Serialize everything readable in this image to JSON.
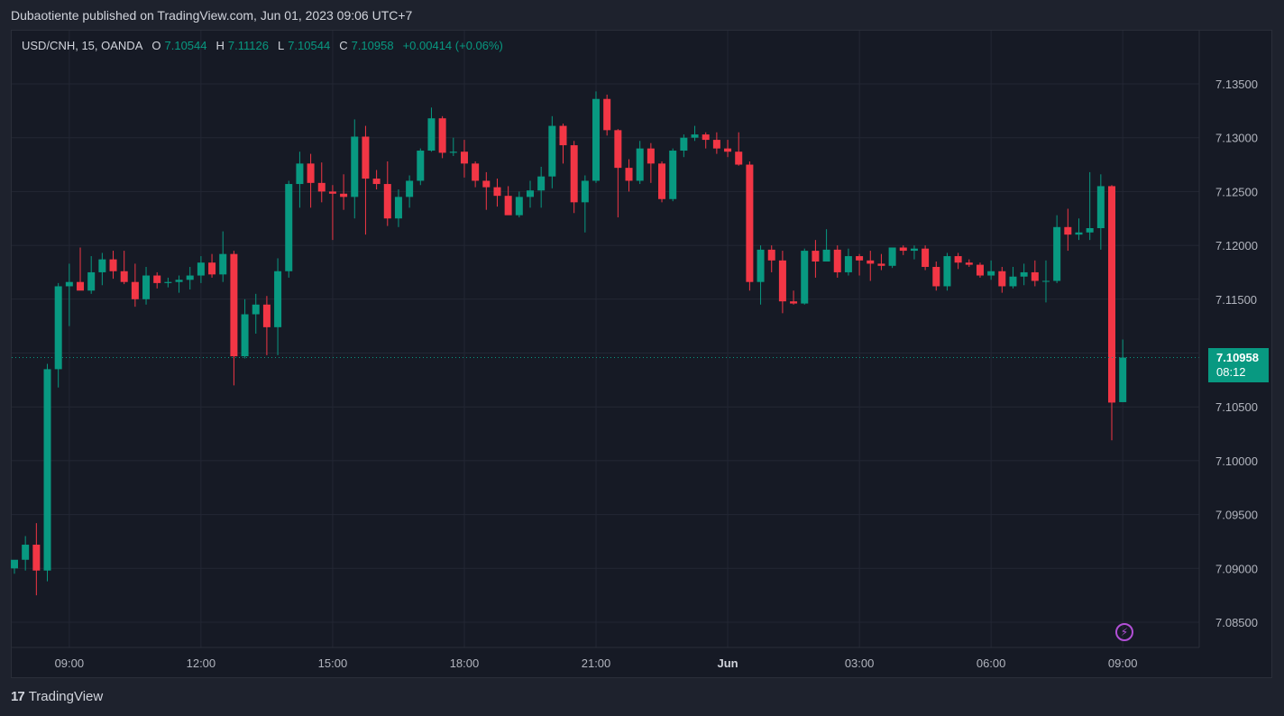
{
  "header": {
    "published": "Dubaotiente published on TradingView.com, Jun 01, 2023 09:06 UTC+7"
  },
  "legend": {
    "symbol": "USD/CNH, 15, OANDA",
    "o_label": "O",
    "o_value": "7.10544",
    "h_label": "H",
    "h_value": "7.11126",
    "l_label": "L",
    "l_value": "7.10544",
    "c_label": "C",
    "c_value": "7.10958",
    "change": "+0.00414 (+0.06%)"
  },
  "price_tag": {
    "price": "7.10958",
    "countdown": "08:12"
  },
  "footer": {
    "logo_mark": "17",
    "brand": "TradingView"
  },
  "colors": {
    "up": "#089981",
    "down": "#f23645",
    "background": "#161a25",
    "grid": "#232734"
  },
  "icons": {
    "replay": "lightning-bolt-icon"
  },
  "chart_data": {
    "type": "candlestick",
    "symbol": "USD/CNH",
    "interval": "15",
    "ylim": [
      7.0825,
      7.1385
    ],
    "y_ticks": [
      "7.13500",
      "7.13000",
      "7.12500",
      "7.12000",
      "7.11500",
      "7.11000",
      "7.10500",
      "7.10000",
      "7.09500",
      "7.09000",
      "7.08500"
    ],
    "x_ticks": [
      {
        "label": "09:00",
        "index": 5
      },
      {
        "label": "12:00",
        "index": 17
      },
      {
        "label": "15:00",
        "index": 29
      },
      {
        "label": "18:00",
        "index": 41
      },
      {
        "label": "21:00",
        "index": 53
      },
      {
        "label": "Jun",
        "index": 65,
        "bold": true
      },
      {
        "label": "03:00",
        "index": 77
      },
      {
        "label": "06:00",
        "index": 89
      },
      {
        "label": "09:00",
        "index": 101
      }
    ],
    "last_price": 7.10958,
    "candles": [
      {
        "o": 7.09,
        "h": 7.0905,
        "l": 7.0895,
        "c": 7.0908
      },
      {
        "o": 7.0908,
        "h": 7.093,
        "l": 7.0898,
        "c": 7.0922
      },
      {
        "o": 7.0922,
        "h": 7.0942,
        "l": 7.0875,
        "c": 7.0898
      },
      {
        "o": 7.0898,
        "h": 7.109,
        "l": 7.0888,
        "c": 7.1085
      },
      {
        "o": 7.1085,
        "h": 7.1165,
        "l": 7.1068,
        "c": 7.1162
      },
      {
        "o": 7.1162,
        "h": 7.1183,
        "l": 7.1125,
        "c": 7.1166
      },
      {
        "o": 7.1166,
        "h": 7.1198,
        "l": 7.116,
        "c": 7.1158
      },
      {
        "o": 7.1158,
        "h": 7.119,
        "l": 7.1155,
        "c": 7.1175
      },
      {
        "o": 7.1175,
        "h": 7.1193,
        "l": 7.1163,
        "c": 7.1187
      },
      {
        "o": 7.1187,
        "h": 7.1195,
        "l": 7.1169,
        "c": 7.1176
      },
      {
        "o": 7.1176,
        "h": 7.1195,
        "l": 7.1164,
        "c": 7.1166
      },
      {
        "o": 7.1166,
        "h": 7.1183,
        "l": 7.1143,
        "c": 7.115
      },
      {
        "o": 7.115,
        "h": 7.118,
        "l": 7.1145,
        "c": 7.1172
      },
      {
        "o": 7.1172,
        "h": 7.1175,
        "l": 7.116,
        "c": 7.1165
      },
      {
        "o": 7.1165,
        "h": 7.117,
        "l": 7.1161,
        "c": 7.1166
      },
      {
        "o": 7.1166,
        "h": 7.1172,
        "l": 7.1156,
        "c": 7.1168
      },
      {
        "o": 7.1168,
        "h": 7.118,
        "l": 7.1159,
        "c": 7.1172
      },
      {
        "o": 7.1172,
        "h": 7.119,
        "l": 7.1165,
        "c": 7.1184
      },
      {
        "o": 7.1184,
        "h": 7.1192,
        "l": 7.117,
        "c": 7.1173
      },
      {
        "o": 7.1173,
        "h": 7.1213,
        "l": 7.1166,
        "c": 7.1192
      },
      {
        "o": 7.1192,
        "h": 7.1195,
        "l": 7.107,
        "c": 7.1097
      },
      {
        "o": 7.1097,
        "h": 7.115,
        "l": 7.1095,
        "c": 7.1136
      },
      {
        "o": 7.1136,
        "h": 7.1155,
        "l": 7.1118,
        "c": 7.1145
      },
      {
        "o": 7.1145,
        "h": 7.1153,
        "l": 7.1098,
        "c": 7.1124
      },
      {
        "o": 7.1124,
        "h": 7.1188,
        "l": 7.1098,
        "c": 7.1176
      },
      {
        "o": 7.1176,
        "h": 7.126,
        "l": 7.117,
        "c": 7.1257
      },
      {
        "o": 7.1257,
        "h": 7.1287,
        "l": 7.1235,
        "c": 7.1276
      },
      {
        "o": 7.1276,
        "h": 7.1285,
        "l": 7.1235,
        "c": 7.1258
      },
      {
        "o": 7.1258,
        "h": 7.1277,
        "l": 7.124,
        "c": 7.125
      },
      {
        "o": 7.125,
        "h": 7.1256,
        "l": 7.1205,
        "c": 7.1248
      },
      {
        "o": 7.1248,
        "h": 7.1266,
        "l": 7.1233,
        "c": 7.1245
      },
      {
        "o": 7.1245,
        "h": 7.1317,
        "l": 7.1225,
        "c": 7.1301
      },
      {
        "o": 7.1301,
        "h": 7.1311,
        "l": 7.121,
        "c": 7.1262
      },
      {
        "o": 7.1262,
        "h": 7.127,
        "l": 7.1252,
        "c": 7.1257
      },
      {
        "o": 7.1257,
        "h": 7.1278,
        "l": 7.1218,
        "c": 7.1225
      },
      {
        "o": 7.1225,
        "h": 7.1252,
        "l": 7.1217,
        "c": 7.1245
      },
      {
        "o": 7.1245,
        "h": 7.1265,
        "l": 7.1235,
        "c": 7.126
      },
      {
        "o": 7.126,
        "h": 7.129,
        "l": 7.1256,
        "c": 7.1288
      },
      {
        "o": 7.1288,
        "h": 7.1328,
        "l": 7.1287,
        "c": 7.1318
      },
      {
        "o": 7.1318,
        "h": 7.132,
        "l": 7.1281,
        "c": 7.1286
      },
      {
        "o": 7.1286,
        "h": 7.13,
        "l": 7.1283,
        "c": 7.1287
      },
      {
        "o": 7.1287,
        "h": 7.1298,
        "l": 7.1263,
        "c": 7.1276
      },
      {
        "o": 7.1276,
        "h": 7.1278,
        "l": 7.1254,
        "c": 7.126
      },
      {
        "o": 7.126,
        "h": 7.1268,
        "l": 7.1233,
        "c": 7.1254
      },
      {
        "o": 7.1254,
        "h": 7.1262,
        "l": 7.1236,
        "c": 7.1246
      },
      {
        "o": 7.1246,
        "h": 7.1255,
        "l": 7.123,
        "c": 7.1228
      },
      {
        "o": 7.1228,
        "h": 7.125,
        "l": 7.1226,
        "c": 7.1245
      },
      {
        "o": 7.1245,
        "h": 7.126,
        "l": 7.1235,
        "c": 7.1251
      },
      {
        "o": 7.1251,
        "h": 7.1273,
        "l": 7.1235,
        "c": 7.1264
      },
      {
        "o": 7.1264,
        "h": 7.132,
        "l": 7.1253,
        "c": 7.1311
      },
      {
        "o": 7.1311,
        "h": 7.1313,
        "l": 7.1276,
        "c": 7.1293
      },
      {
        "o": 7.1293,
        "h": 7.1297,
        "l": 7.123,
        "c": 7.124
      },
      {
        "o": 7.124,
        "h": 7.1265,
        "l": 7.1212,
        "c": 7.126
      },
      {
        "o": 7.126,
        "h": 7.1343,
        "l": 7.1258,
        "c": 7.1336
      },
      {
        "o": 7.1336,
        "h": 7.134,
        "l": 7.1302,
        "c": 7.1307
      },
      {
        "o": 7.1307,
        "h": 7.1308,
        "l": 7.1226,
        "c": 7.1272
      },
      {
        "o": 7.1272,
        "h": 7.128,
        "l": 7.125,
        "c": 7.126
      },
      {
        "o": 7.126,
        "h": 7.1297,
        "l": 7.1257,
        "c": 7.129
      },
      {
        "o": 7.129,
        "h": 7.1295,
        "l": 7.1258,
        "c": 7.1276
      },
      {
        "o": 7.1276,
        "h": 7.1278,
        "l": 7.124,
        "c": 7.1243
      },
      {
        "o": 7.1243,
        "h": 7.129,
        "l": 7.1241,
        "c": 7.1288
      },
      {
        "o": 7.1288,
        "h": 7.1303,
        "l": 7.1282,
        "c": 7.13
      },
      {
        "o": 7.13,
        "h": 7.1311,
        "l": 7.1297,
        "c": 7.1303
      },
      {
        "o": 7.1303,
        "h": 7.1305,
        "l": 7.129,
        "c": 7.1298
      },
      {
        "o": 7.1298,
        "h": 7.1305,
        "l": 7.1285,
        "c": 7.129
      },
      {
        "o": 7.129,
        "h": 7.1298,
        "l": 7.1282,
        "c": 7.1287
      },
      {
        "o": 7.1287,
        "h": 7.1305,
        "l": 7.1274,
        "c": 7.1275
      },
      {
        "o": 7.1275,
        "h": 7.1278,
        "l": 7.1158,
        "c": 7.1166
      },
      {
        "o": 7.1166,
        "h": 7.12,
        "l": 7.1145,
        "c": 7.1196
      },
      {
        "o": 7.1196,
        "h": 7.12,
        "l": 7.1175,
        "c": 7.1186
      },
      {
        "o": 7.1186,
        "h": 7.1195,
        "l": 7.1137,
        "c": 7.1148
      },
      {
        "o": 7.1148,
        "h": 7.1158,
        "l": 7.1145,
        "c": 7.1146
      },
      {
        "o": 7.1146,
        "h": 7.1197,
        "l": 7.1145,
        "c": 7.1195
      },
      {
        "o": 7.1195,
        "h": 7.1205,
        "l": 7.117,
        "c": 7.1185
      },
      {
        "o": 7.1185,
        "h": 7.1215,
        "l": 7.1185,
        "c": 7.1196
      },
      {
        "o": 7.1196,
        "h": 7.12,
        "l": 7.117,
        "c": 7.1175
      },
      {
        "o": 7.1175,
        "h": 7.1197,
        "l": 7.1172,
        "c": 7.119
      },
      {
        "o": 7.119,
        "h": 7.1192,
        "l": 7.1172,
        "c": 7.1186
      },
      {
        "o": 7.1186,
        "h": 7.1195,
        "l": 7.1167,
        "c": 7.1183
      },
      {
        "o": 7.1183,
        "h": 7.1192,
        "l": 7.1177,
        "c": 7.1181
      },
      {
        "o": 7.1181,
        "h": 7.1195,
        "l": 7.1179,
        "c": 7.1198
      },
      {
        "o": 7.1198,
        "h": 7.12,
        "l": 7.1191,
        "c": 7.1195
      },
      {
        "o": 7.1195,
        "h": 7.12,
        "l": 7.1187,
        "c": 7.1197
      },
      {
        "o": 7.1197,
        "h": 7.12,
        "l": 7.1177,
        "c": 7.118
      },
      {
        "o": 7.118,
        "h": 7.1185,
        "l": 7.1158,
        "c": 7.1162
      },
      {
        "o": 7.1162,
        "h": 7.1193,
        "l": 7.1158,
        "c": 7.119
      },
      {
        "o": 7.119,
        "h": 7.1193,
        "l": 7.1178,
        "c": 7.1184
      },
      {
        "o": 7.1184,
        "h": 7.1187,
        "l": 7.118,
        "c": 7.1182
      },
      {
        "o": 7.1182,
        "h": 7.1184,
        "l": 7.117,
        "c": 7.1172
      },
      {
        "o": 7.1172,
        "h": 7.1186,
        "l": 7.1168,
        "c": 7.1176
      },
      {
        "o": 7.1176,
        "h": 7.118,
        "l": 7.1156,
        "c": 7.1162
      },
      {
        "o": 7.1162,
        "h": 7.118,
        "l": 7.116,
        "c": 7.1171
      },
      {
        "o": 7.1171,
        "h": 7.1183,
        "l": 7.1163,
        "c": 7.1175
      },
      {
        "o": 7.1175,
        "h": 7.1186,
        "l": 7.1162,
        "c": 7.1167
      },
      {
        "o": 7.1167,
        "h": 7.1186,
        "l": 7.1147,
        "c": 7.1167
      },
      {
        "o": 7.1167,
        "h": 7.1228,
        "l": 7.1165,
        "c": 7.1217
      },
      {
        "o": 7.1217,
        "h": 7.1234,
        "l": 7.1195,
        "c": 7.121
      },
      {
        "o": 7.121,
        "h": 7.1225,
        "l": 7.1205,
        "c": 7.1212
      },
      {
        "o": 7.1212,
        "h": 7.1268,
        "l": 7.1205,
        "c": 7.1216
      },
      {
        "o": 7.1216,
        "h": 7.1266,
        "l": 7.1196,
        "c": 7.1255
      },
      {
        "o": 7.1255,
        "h": 7.1256,
        "l": 7.1019,
        "c": 7.1054
      },
      {
        "o": 7.10544,
        "h": 7.11126,
        "l": 7.10544,
        "c": 7.10958
      }
    ]
  }
}
